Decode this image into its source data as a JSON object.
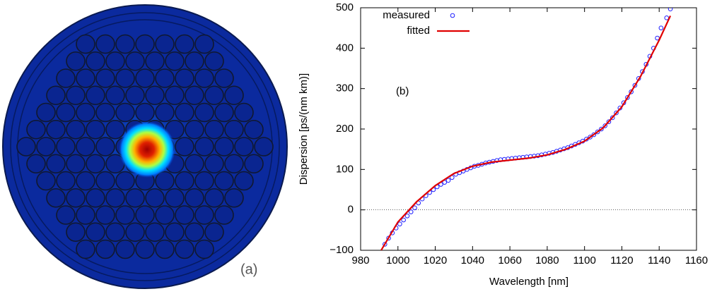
{
  "panel_a": {
    "label": "(a)"
  },
  "chart_data": {
    "type": "scatter-line",
    "annotation": "(b)",
    "x_label": "Wavelength [nm]",
    "y_label": "Dispersion [ps/(nm km)]",
    "xlim": [
      980,
      1160
    ],
    "xticks": [
      980,
      1000,
      1020,
      1040,
      1060,
      1080,
      1100,
      1120,
      1140,
      1160
    ],
    "ylim": [
      -100,
      500
    ],
    "yticks": [
      {
        "value": -100,
        "label": "−100"
      },
      0,
      100,
      200,
      300,
      400,
      500
    ],
    "hlines": [
      0
    ],
    "grid": false,
    "legend": "top-left",
    "series": [
      {
        "name": "measured",
        "color": "#2020ff",
        "marker": "circle",
        "x": [
          993,
          995,
          997,
          999,
          1001,
          1003,
          1005,
          1007,
          1009,
          1011,
          1013,
          1015,
          1017,
          1019,
          1021,
          1023,
          1025,
          1027,
          1029,
          1031,
          1033,
          1035,
          1037,
          1039,
          1041,
          1043,
          1045,
          1047,
          1049,
          1051,
          1053,
          1055,
          1057,
          1059,
          1061,
          1063,
          1065,
          1067,
          1069,
          1071,
          1073,
          1075,
          1077,
          1079,
          1081,
          1083,
          1085,
          1087,
          1089,
          1091,
          1093,
          1095,
          1097,
          1099,
          1101,
          1103,
          1105,
          1107,
          1109,
          1111,
          1113,
          1115,
          1117,
          1119,
          1121,
          1123,
          1125,
          1127,
          1129,
          1131,
          1133,
          1135,
          1137,
          1139,
          1141,
          1144,
          1146
        ],
        "values": [
          -85,
          -70,
          -57,
          -45,
          -35,
          -25,
          -15,
          -5,
          5,
          17,
          27,
          35,
          43,
          50,
          57,
          63,
          68,
          73,
          80,
          88,
          92,
          96,
          100,
          104,
          108,
          110,
          113,
          116,
          118,
          120,
          122,
          124,
          125,
          126,
          127,
          128,
          129,
          130,
          131,
          132,
          133,
          134,
          136,
          138,
          140,
          142,
          145,
          148,
          151,
          154,
          158,
          162,
          166,
          170,
          175,
          180,
          186,
          193,
          200,
          208,
          218,
          228,
          240,
          252,
          265,
          278,
          292,
          308,
          325,
          342,
          360,
          380,
          400,
          425,
          450,
          475,
          497
        ]
      },
      {
        "name": "fitted",
        "color": "#e00000",
        "marker": "line",
        "x": [
          991,
          1000,
          1010,
          1020,
          1030,
          1040,
          1050,
          1060,
          1070,
          1080,
          1090,
          1100,
          1110,
          1120,
          1130,
          1140,
          1146
        ],
        "values": [
          -100,
          -30,
          20,
          60,
          90,
          108,
          118,
          123,
          128,
          136,
          150,
          170,
          203,
          255,
          330,
          420,
          480
        ]
      }
    ]
  }
}
